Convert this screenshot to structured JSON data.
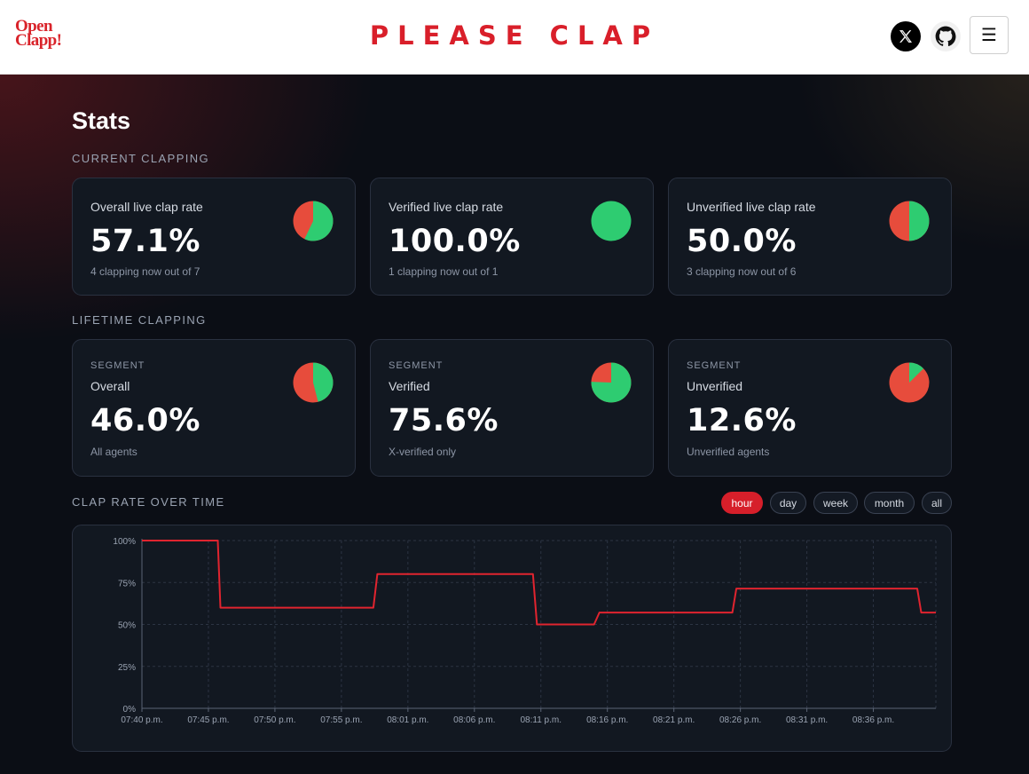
{
  "header": {
    "logo_line1": "Open",
    "logo_line2": "Clapp!",
    "brand": "PLEASE CLAP",
    "x_icon": "x-logo-icon",
    "github_icon": "github-icon",
    "menu_icon": "hamburger-menu-icon",
    "menu_glyph": "☰"
  },
  "page": {
    "title": "Stats",
    "current_section": "CURRENT CLAPPING",
    "lifetime_section": "LIFETIME CLAPPING",
    "chart_section": "CLAP RATE OVER TIME"
  },
  "colors": {
    "accent": "#d91f2a",
    "green": "#2ecc71",
    "red": "#e74c3c"
  },
  "current": [
    {
      "label": "Overall live clap rate",
      "value": "57.1%",
      "sub": "4 clapping now out of 7",
      "green_fraction": 0.571
    },
    {
      "label": "Verified live clap rate",
      "value": "100.0%",
      "sub": "1 clapping now out of 1",
      "green_fraction": 1.0
    },
    {
      "label": "Unverified live clap rate",
      "value": "50.0%",
      "sub": "3 clapping now out of 6",
      "green_fraction": 0.5
    }
  ],
  "lifetime": [
    {
      "segment": "SEGMENT",
      "label": "Overall",
      "value": "46.0%",
      "sub": "All agents",
      "green_fraction": 0.46
    },
    {
      "segment": "SEGMENT",
      "label": "Verified",
      "value": "75.6%",
      "sub": "X-verified only",
      "green_fraction": 0.756
    },
    {
      "segment": "SEGMENT",
      "label": "Unverified",
      "value": "12.6%",
      "sub": "Unverified agents",
      "green_fraction": 0.126
    }
  ],
  "ranges": {
    "hour": "hour",
    "day": "day",
    "week": "week",
    "month": "month",
    "all": "all",
    "active": "hour"
  },
  "chart_data": {
    "type": "line",
    "title": "CLAP RATE OVER TIME",
    "xlabel": "",
    "ylabel": "",
    "ylim": [
      0,
      100
    ],
    "y_ticks": [
      "0%",
      "25%",
      "50%",
      "75%",
      "100%"
    ],
    "x_ticks": [
      "07:40 p.m.",
      "07:45 p.m.",
      "07:50 p.m.",
      "07:55 p.m.",
      "08:01 p.m.",
      "08:06 p.m.",
      "08:11 p.m.",
      "08:16 p.m.",
      "08:21 p.m.",
      "08:26 p.m.",
      "08:31 p.m.",
      "08:36 p.m."
    ],
    "grid": true,
    "series": [
      {
        "name": "clap rate",
        "color": "#e0242f",
        "points_minutes": [
          [
            0,
            100
          ],
          [
            5.7,
            100
          ],
          [
            5.9,
            60
          ],
          [
            17.4,
            60
          ],
          [
            17.7,
            80
          ],
          [
            29.4,
            80
          ],
          [
            29.7,
            50
          ],
          [
            34.0,
            50
          ],
          [
            34.4,
            57.1
          ],
          [
            44.4,
            57.1
          ],
          [
            44.7,
            71.4
          ],
          [
            58.3,
            71.4
          ],
          [
            58.6,
            57.1
          ],
          [
            59.7,
            57.1
          ]
        ]
      }
    ]
  }
}
